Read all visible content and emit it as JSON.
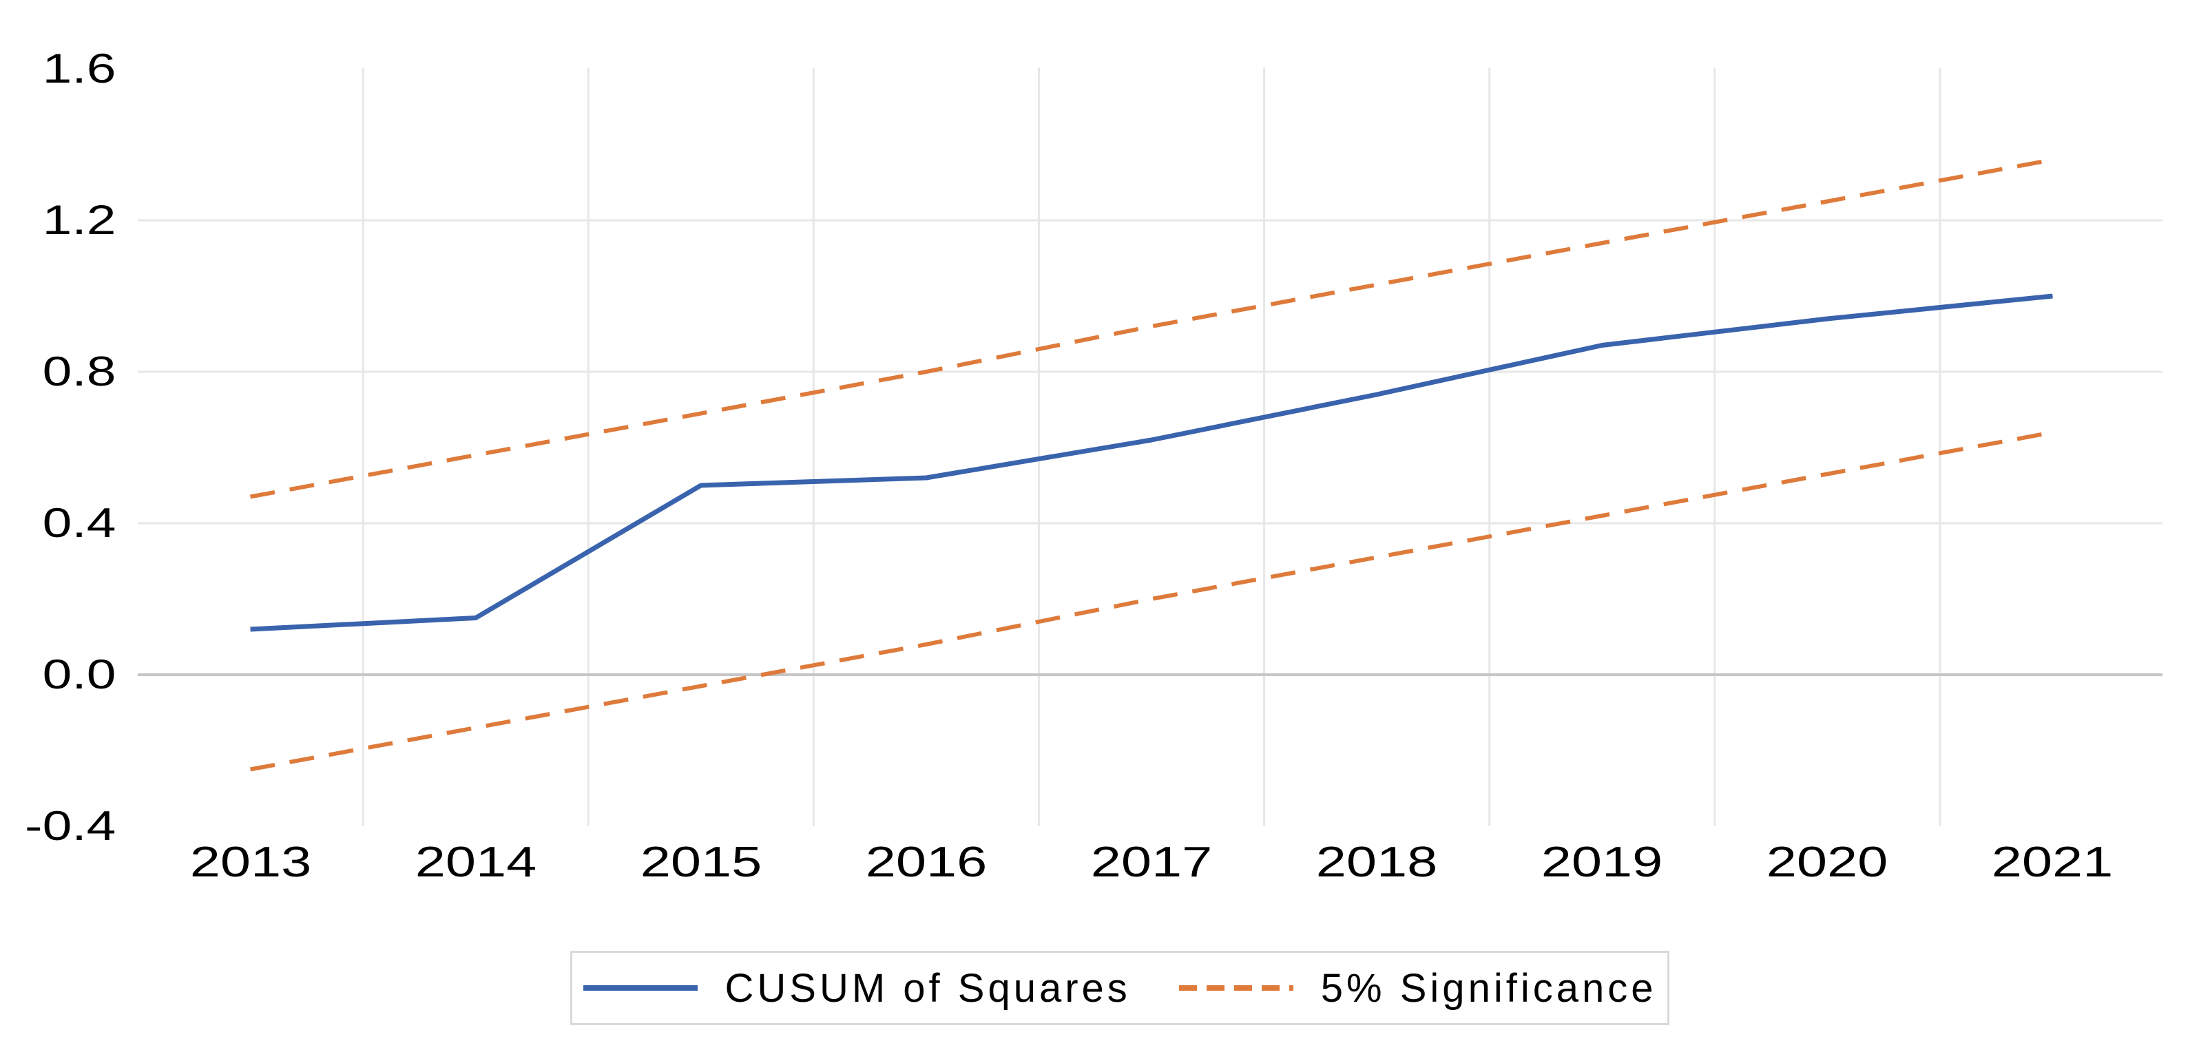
{
  "chart_data": {
    "type": "line",
    "x": [
      "2013",
      "2014",
      "2015",
      "2016",
      "2017",
      "2018",
      "2019",
      "2020",
      "2021"
    ],
    "series": [
      {
        "name": "CUSUM of Squares",
        "style": "solid",
        "color_key": "series_blue",
        "values": [
          0.12,
          0.15,
          0.5,
          0.52,
          0.62,
          0.74,
          0.87,
          0.94,
          1.0
        ]
      },
      {
        "name": "5% Significance (upper bound)",
        "style": "dashed",
        "color_key": "series_orange",
        "values": [
          0.47,
          0.58,
          0.69,
          0.8,
          0.92,
          1.03,
          1.14,
          1.25,
          1.36
        ]
      },
      {
        "name": "5% Significance (lower bound)",
        "style": "dashed",
        "color_key": "series_orange",
        "values": [
          -0.25,
          -0.14,
          -0.03,
          0.08,
          0.2,
          0.31,
          0.42,
          0.53,
          0.64
        ]
      }
    ],
    "title": "",
    "xlabel": "",
    "ylabel": "",
    "ylim": [
      -0.4,
      1.6
    ],
    "y_tick_labels": [
      "1.6",
      "1.2",
      "0.8",
      "0.4",
      "0.0",
      "-0.4"
    ],
    "y_tick_values": [
      1.6,
      1.2,
      0.8,
      0.4,
      0.0,
      -0.4
    ],
    "gridline_values": [
      1.2,
      0.8,
      0.4
    ],
    "zero_line_value": 0.0,
    "grid": "light horizontal gridlines + vertical gridlines between year categories",
    "legend_position": "bottom-center-boxed"
  },
  "legend": {
    "items": [
      {
        "label": "CUSUM of Squares",
        "style": "solid",
        "color_key": "series_blue"
      },
      {
        "label": "5% Significance",
        "style": "dashed",
        "color_key": "series_orange"
      }
    ]
  },
  "colors": {
    "series_blue": "#3A63AD",
    "series_orange": "#DE7B3B",
    "gridline": "#E7E7E7",
    "zero_line": "#C6C6C6",
    "legend_border": "#D9D9D9",
    "text": "#000000",
    "background": "#FFFFFF"
  }
}
